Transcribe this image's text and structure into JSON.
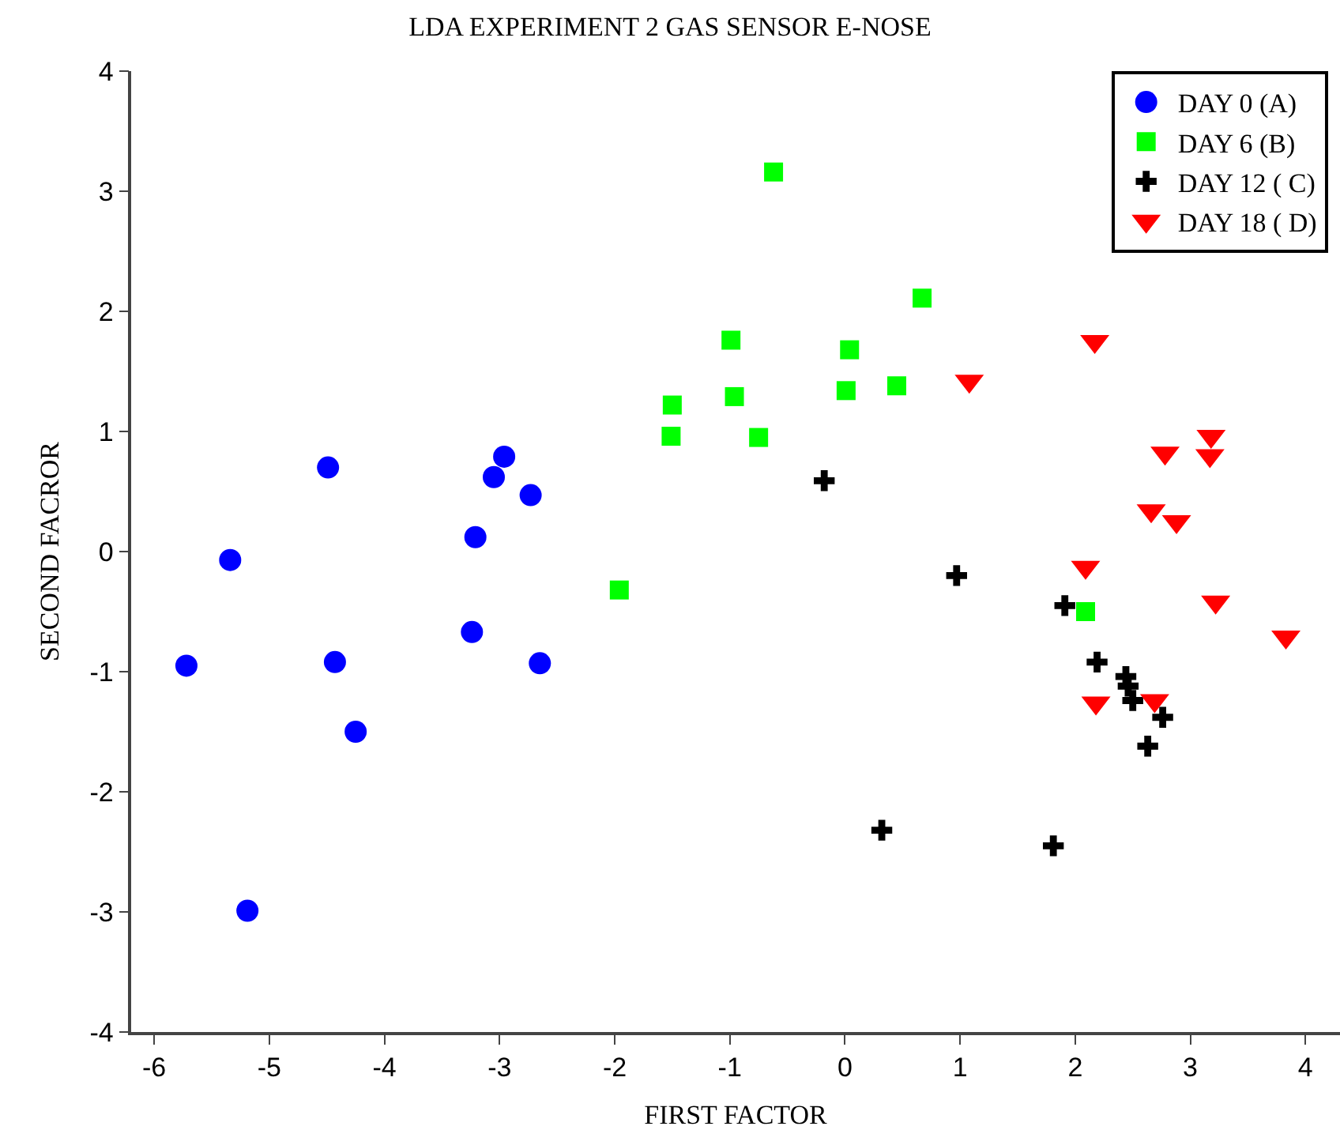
{
  "chart_data": {
    "type": "scatter",
    "title": "LDA EXPERIMENT 2 GAS SENSOR E-NOSE",
    "xlabel": "FIRST FACTOR",
    "ylabel": "SECOND FACROR",
    "xlim": [
      -6.2,
      4.3
    ],
    "xticks": [
      -6,
      -5,
      -4,
      -3,
      -2,
      -1,
      0,
      1,
      2,
      3,
      4
    ],
    "ylim": [
      -4,
      4
    ],
    "yticks": [
      -4,
      -3,
      -2,
      -1,
      0,
      1,
      2,
      3,
      4
    ],
    "legend": "top right",
    "series": [
      {
        "name": "DAY 0 (A)",
        "color": "#0000ff",
        "marker": "circle",
        "x": [
          -5.72,
          -5.34,
          -4.49,
          -4.43,
          -4.25,
          -5.19,
          -3.21,
          -3.24,
          -3.05,
          -2.96,
          -2.73,
          -2.65
        ],
        "values": [
          -0.95,
          -0.07,
          0.7,
          -0.92,
          -1.5,
          -2.99,
          0.12,
          -0.67,
          0.62,
          0.79,
          0.47,
          -0.93
        ]
      },
      {
        "name": "DAY 6 (B)",
        "color": "#00ff00",
        "marker": "square",
        "x": [
          -0.62,
          -1.96,
          -1.5,
          -1.51,
          -0.99,
          -0.96,
          -0.75,
          0.04,
          0.01,
          0.45,
          0.67,
          2.09
        ],
        "values": [
          3.16,
          -0.32,
          1.22,
          0.96,
          1.76,
          1.29,
          0.95,
          1.68,
          1.34,
          1.38,
          2.11,
          -0.5
        ]
      },
      {
        "name": "DAY 12 ( C)",
        "color": "#000000",
        "marker": "cross",
        "x": [
          -0.18,
          0.97,
          1.91,
          2.19,
          2.44,
          2.46,
          2.5,
          2.76,
          2.63,
          1.81,
          0.32
        ],
        "values": [
          0.59,
          -0.2,
          -0.45,
          -0.92,
          -1.04,
          -1.12,
          -1.24,
          -1.38,
          -1.62,
          -2.45,
          -2.32
        ]
      },
      {
        "name": "DAY 18 ( D)",
        "color": "#ff0000",
        "marker": "triangle",
        "x": [
          1.08,
          2.17,
          2.09,
          3.17,
          3.18,
          2.78,
          2.66,
          2.88,
          3.22,
          3.83,
          2.18,
          2.69
        ],
        "values": [
          1.42,
          1.75,
          -0.13,
          0.8,
          0.96,
          0.82,
          0.34,
          0.25,
          -0.42,
          -0.71,
          -1.26,
          -1.24
        ]
      }
    ]
  }
}
